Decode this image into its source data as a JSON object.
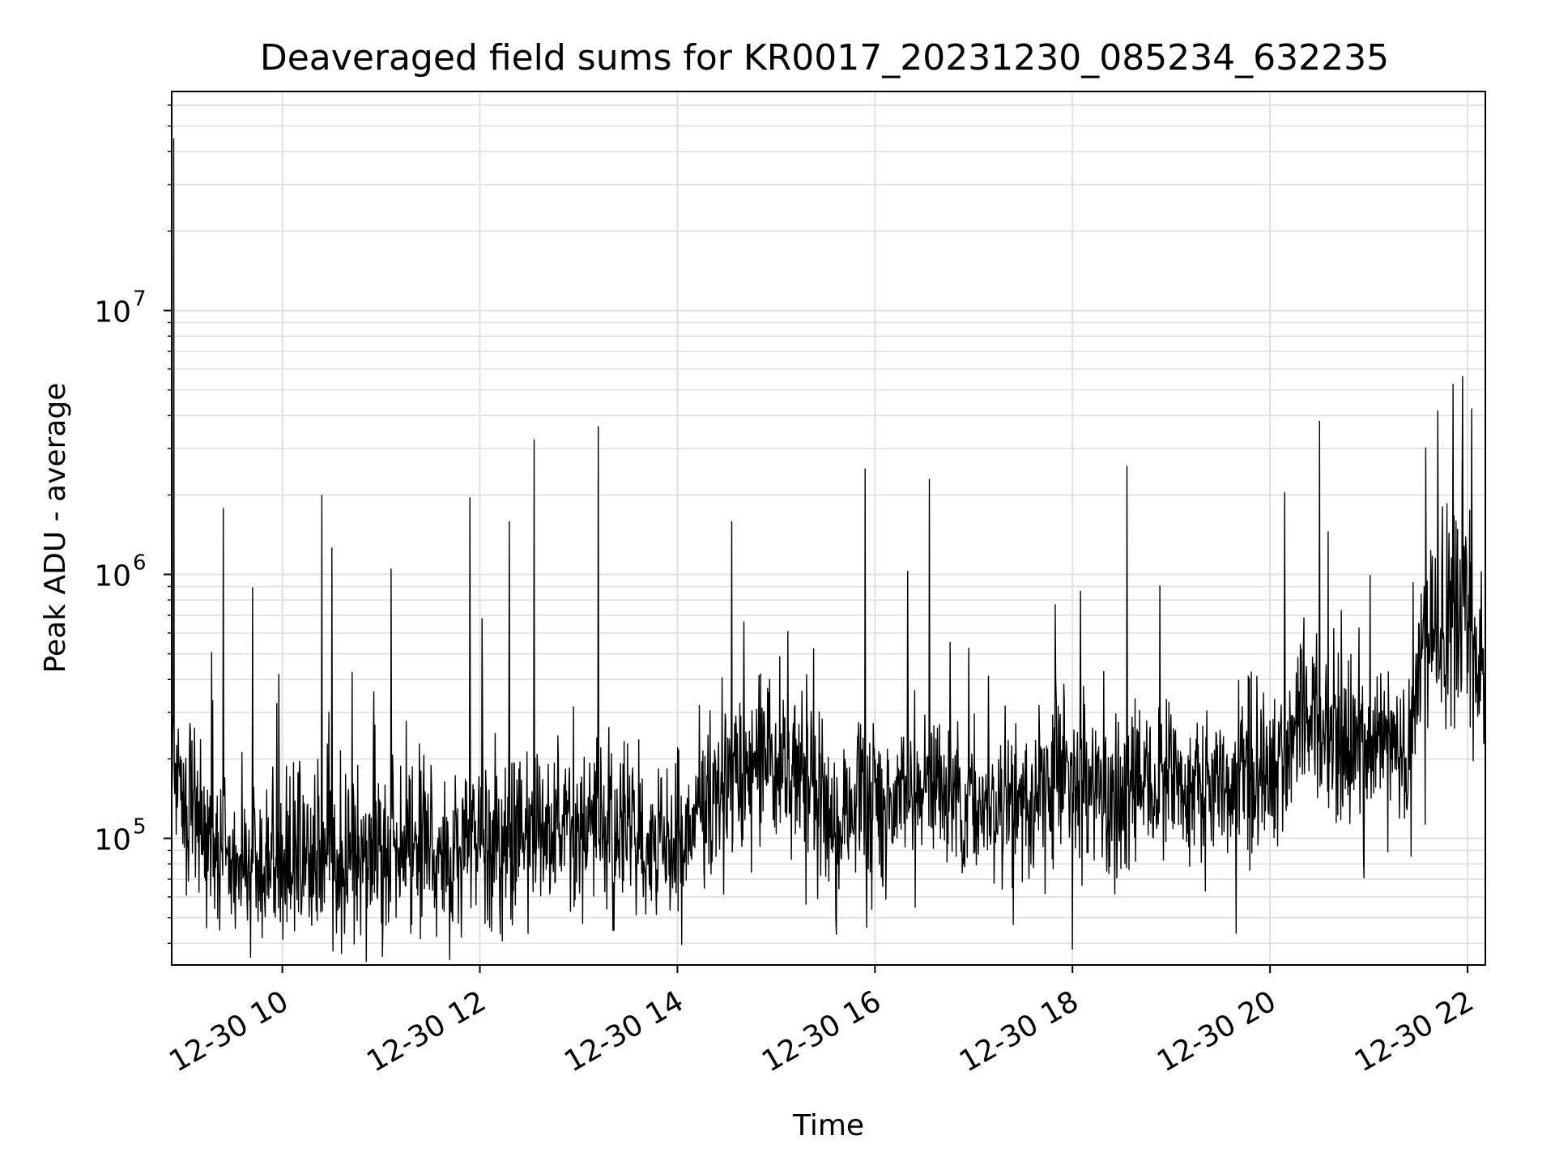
{
  "chart_data": {
    "type": "line",
    "title": "Deaveraged field sums for KR0017_20231230_085234_632235",
    "xlabel": "Time",
    "ylabel": "Peak ADU - average",
    "yscale": "log",
    "grid": true,
    "line_color": "#000000",
    "grid_color": "#e0e0e0",
    "x_range_hours": [
      8.88,
      22.18
    ],
    "y_range_log10": [
      4.52,
      7.83
    ],
    "x_ticks": [
      {
        "value": 10,
        "label": "12-30 10"
      },
      {
        "value": 12,
        "label": "12-30 12"
      },
      {
        "value": 14,
        "label": "12-30 14"
      },
      {
        "value": 16,
        "label": "12-30 16"
      },
      {
        "value": 18,
        "label": "12-30 18"
      },
      {
        "value": 20,
        "label": "12-30 20"
      },
      {
        "value": 22,
        "label": "12-30 22"
      }
    ],
    "y_ticks": [
      {
        "value": 5,
        "base": "10",
        "exp": "5"
      },
      {
        "value": 6,
        "base": "10",
        "exp": "6"
      },
      {
        "value": 7,
        "base": "10",
        "exp": "7"
      }
    ],
    "baseline_log10_points": [
      [
        8.88,
        5.3
      ],
      [
        9.0,
        5.2
      ],
      [
        9.3,
        4.95
      ],
      [
        9.6,
        4.9
      ],
      [
        10.0,
        4.92
      ],
      [
        10.5,
        4.93
      ],
      [
        11.0,
        4.95
      ],
      [
        11.5,
        4.98
      ],
      [
        12.0,
        5.0
      ],
      [
        12.5,
        5.03
      ],
      [
        13.0,
        5.05
      ],
      [
        13.5,
        5.0
      ],
      [
        14.0,
        4.95
      ],
      [
        14.3,
        5.15
      ],
      [
        14.8,
        5.25
      ],
      [
        15.2,
        5.3
      ],
      [
        15.5,
        5.1
      ],
      [
        16.0,
        5.15
      ],
      [
        16.5,
        5.2
      ],
      [
        17.0,
        5.15
      ],
      [
        17.5,
        5.1
      ],
      [
        18.0,
        5.25
      ],
      [
        18.5,
        5.2
      ],
      [
        19.0,
        5.2
      ],
      [
        19.5,
        5.2
      ],
      [
        20.0,
        5.25
      ],
      [
        20.3,
        5.45
      ],
      [
        20.8,
        5.4
      ],
      [
        21.0,
        5.35
      ],
      [
        21.4,
        5.35
      ],
      [
        21.6,
        5.75
      ],
      [
        22.0,
        5.9
      ],
      [
        22.18,
        5.6
      ]
    ],
    "spikes": [
      {
        "x": 8.9,
        "log10_value": 7.65
      },
      {
        "x": 9.4,
        "log10_value": 6.25
      },
      {
        "x": 9.7,
        "log10_value": 5.95
      },
      {
        "x": 10.4,
        "log10_value": 6.3
      },
      {
        "x": 10.5,
        "log10_value": 6.1
      },
      {
        "x": 11.1,
        "log10_value": 6.02
      },
      {
        "x": 11.9,
        "log10_value": 6.29
      },
      {
        "x": 12.3,
        "log10_value": 6.2
      },
      {
        "x": 12.55,
        "log10_value": 6.51
      },
      {
        "x": 13.2,
        "log10_value": 6.56
      },
      {
        "x": 14.55,
        "log10_value": 6.2
      },
      {
        "x": 15.9,
        "log10_value": 6.4
      },
      {
        "x": 16.55,
        "log10_value": 6.36
      },
      {
        "x": 18.55,
        "log10_value": 6.41
      },
      {
        "x": 20.15,
        "log10_value": 6.31
      },
      {
        "x": 20.5,
        "log10_value": 6.58
      },
      {
        "x": 21.95,
        "log10_value": 6.75
      },
      {
        "x": 21.85,
        "log10_value": 6.72
      },
      {
        "x": 21.7,
        "log10_value": 6.62
      },
      {
        "x": 18.0,
        "log10_value": 4.58
      },
      {
        "x": 13.35,
        "log10_value": 4.65
      },
      {
        "x": 10.3,
        "log10_value": 4.67
      },
      {
        "x": 15.3,
        "log10_value": 4.75
      },
      {
        "x": 20.95,
        "log10_value": 4.85
      }
    ],
    "noise_sigma_log10": 0.16,
    "sample_count": 2600
  }
}
